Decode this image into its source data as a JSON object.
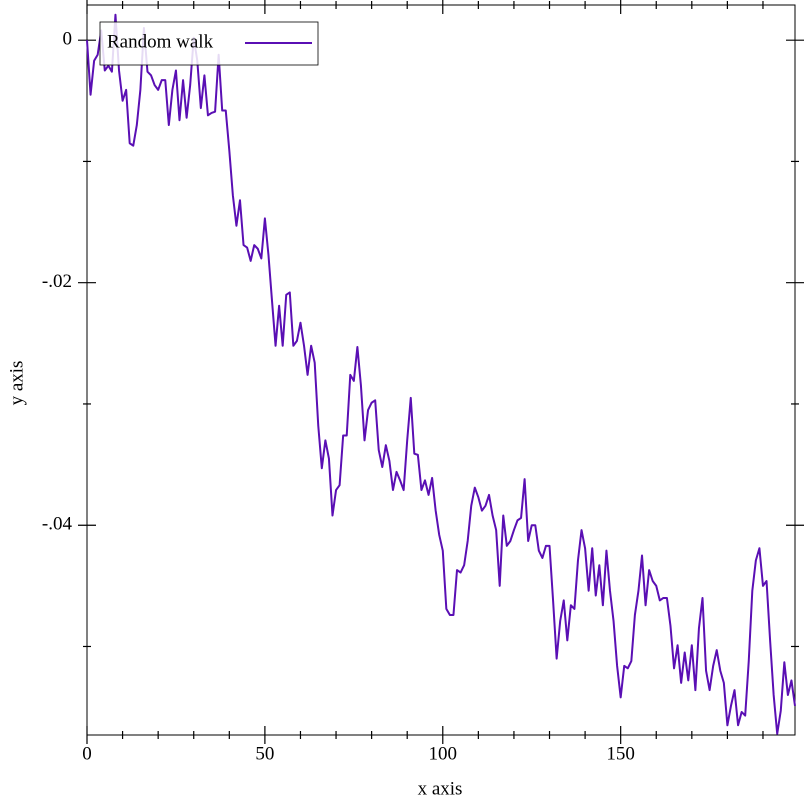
{
  "chart_data": {
    "type": "line",
    "x_label": "x axis",
    "y_label": "y axis",
    "x": [
      0,
      1,
      2,
      3,
      4,
      5,
      6,
      7,
      8,
      9,
      10,
      11,
      12,
      13,
      14,
      15,
      16,
      17,
      18,
      19,
      20,
      21,
      22,
      23,
      24,
      25,
      26,
      27,
      28,
      29,
      30,
      31,
      32,
      33,
      34,
      35,
      36,
      37,
      38,
      39,
      40,
      41,
      42,
      43,
      44,
      45,
      46,
      47,
      48,
      49,
      50,
      51,
      52,
      53,
      54,
      55,
      56,
      57,
      58,
      59,
      60,
      61,
      62,
      63,
      64,
      65,
      66,
      67,
      68,
      69,
      70,
      71,
      72,
      73,
      74,
      75,
      76,
      77,
      78,
      79,
      80,
      81,
      82,
      83,
      84,
      85,
      86,
      87,
      88,
      89,
      90,
      91,
      92,
      93,
      94,
      95,
      96,
      97,
      98,
      99,
      100,
      101,
      102,
      103,
      104,
      105,
      106,
      107,
      108,
      109,
      110,
      111,
      112,
      113,
      114,
      115,
      116,
      117,
      118,
      119,
      120,
      121,
      122,
      123,
      124,
      125,
      126,
      127,
      128,
      129,
      130,
      131,
      132,
      133,
      134,
      135,
      136,
      137,
      138,
      139,
      140,
      141,
      142,
      143,
      144,
      145,
      146,
      147,
      148,
      149,
      150,
      151,
      152,
      153,
      154,
      155,
      156,
      157,
      158,
      159,
      160,
      161,
      162,
      163,
      164,
      165,
      166,
      167,
      168,
      169,
      170,
      171,
      172,
      173,
      174,
      175,
      176,
      177,
      178,
      179,
      180,
      181,
      182,
      183,
      184,
      185,
      186,
      187,
      188,
      189,
      190,
      191,
      192,
      193,
      194,
      195,
      196,
      197,
      198,
      199
    ],
    "series": [
      {
        "name": "Random walk",
        "color": "#5a0fb4",
        "values": [
          0,
          -0.0045,
          -0.0017,
          -0.0012,
          0.0008,
          -0.0025,
          -0.0021,
          -0.0026,
          0.0021,
          -0.0025,
          -0.005,
          -0.0041,
          -0.0085,
          -0.0087,
          -0.007,
          -0.0041,
          0.001,
          -0.0026,
          -0.0029,
          -0.0037,
          -0.0041,
          -0.0033,
          -0.0033,
          -0.007,
          -0.0041,
          -0.0025,
          -0.0066,
          -0.0033,
          -0.0064,
          -0.0037,
          0.0002,
          -0.0017,
          -0.0056,
          -0.0029,
          -0.0062,
          -0.006,
          -0.0059,
          -0.0012,
          -0.0058,
          -0.0058,
          -0.0091,
          -0.0128,
          -0.0153,
          -0.0132,
          -0.0169,
          -0.0171,
          -0.0182,
          -0.0169,
          -0.0172,
          -0.018,
          -0.0147,
          -0.0177,
          -0.0215,
          -0.0252,
          -0.0219,
          -0.0252,
          -0.021,
          -0.0208,
          -0.0252,
          -0.0248,
          -0.0233,
          -0.0252,
          -0.0276,
          -0.0252,
          -0.0266,
          -0.0318,
          -0.0353,
          -0.033,
          -0.0345,
          -0.0392,
          -0.0371,
          -0.0367,
          -0.0326,
          -0.0326,
          -0.0276,
          -0.0281,
          -0.0253,
          -0.0285,
          -0.033,
          -0.0305,
          -0.0299,
          -0.0297,
          -0.0338,
          -0.0352,
          -0.0334,
          -0.0347,
          -0.0371,
          -0.0356,
          -0.0363,
          -0.0371,
          -0.033,
          -0.0295,
          -0.0341,
          -0.0342,
          -0.0371,
          -0.0363,
          -0.0375,
          -0.0361,
          -0.0388,
          -0.0408,
          -0.0421,
          -0.0469,
          -0.0474,
          -0.0474,
          -0.0437,
          -0.0439,
          -0.0433,
          -0.0413,
          -0.0384,
          -0.0369,
          -0.0377,
          -0.0388,
          -0.0384,
          -0.0375,
          -0.0392,
          -0.0404,
          -0.045,
          -0.0392,
          -0.0417,
          -0.0413,
          -0.0404,
          -0.0396,
          -0.0394,
          -0.0362,
          -0.0413,
          -0.04,
          -0.04,
          -0.0421,
          -0.0427,
          -0.0417,
          -0.0417,
          -0.0462,
          -0.051,
          -0.0479,
          -0.0462,
          -0.0495,
          -0.0466,
          -0.0469,
          -0.0429,
          -0.0404,
          -0.0419,
          -0.0454,
          -0.0419,
          -0.0458,
          -0.0433,
          -0.0466,
          -0.0421,
          -0.0454,
          -0.0479,
          -0.0516,
          -0.0542,
          -0.0516,
          -0.0518,
          -0.0512,
          -0.0474,
          -0.0454,
          -0.0425,
          -0.0466,
          -0.0437,
          -0.0446,
          -0.045,
          -0.0462,
          -0.046,
          -0.046,
          -0.0483,
          -0.0518,
          -0.0499,
          -0.053,
          -0.0505,
          -0.0528,
          -0.0499,
          -0.0536,
          -0.0485,
          -0.046,
          -0.052,
          -0.0536,
          -0.0516,
          -0.0503,
          -0.052,
          -0.053,
          -0.0565,
          -0.0549,
          -0.0536,
          -0.0565,
          -0.0554,
          -0.0557,
          -0.0512,
          -0.0454,
          -0.0429,
          -0.0419,
          -0.045,
          -0.0446,
          -0.0495,
          -0.054,
          -0.0572,
          -0.0553,
          -0.0513,
          -0.054,
          -0.0528,
          -0.0549
        ]
      }
    ],
    "xlim": [
      0,
      199
    ],
    "ylim": [
      -0.0573,
      0.0029
    ],
    "xticks": [
      0,
      50,
      100,
      150
    ],
    "x_minor_ticks": [
      10,
      20,
      30,
      40,
      60,
      70,
      80,
      90,
      110,
      120,
      130,
      140,
      160,
      170,
      180,
      190
    ],
    "yticks": [
      0,
      {
        "value": -0.02,
        "label": "-.02"
      },
      {
        "value": -0.04,
        "label": "-.04"
      }
    ],
    "y_minor_ticks": [
      -0.01,
      -0.03,
      -0.05
    ],
    "legend": "top-left",
    "grid": false
  }
}
